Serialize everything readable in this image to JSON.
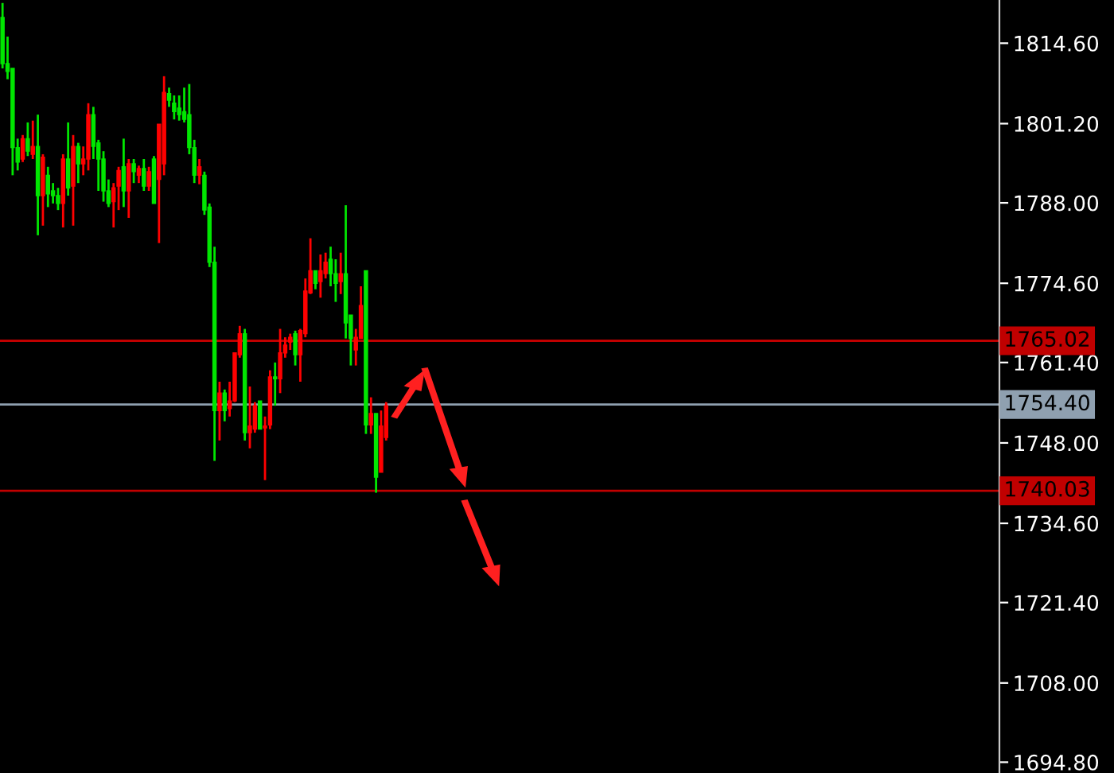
{
  "chart_data": {
    "type": "candlestick",
    "categories": [
      null,
      null,
      null,
      null,
      null,
      null,
      null,
      null,
      null,
      null,
      null,
      null,
      null,
      null,
      null,
      null,
      null,
      null,
      null,
      null,
      null,
      null,
      null,
      null,
      null,
      null,
      null,
      null,
      null,
      null,
      null,
      null,
      null,
      null,
      null,
      null,
      null,
      null,
      null,
      null,
      null,
      null,
      null,
      null,
      null,
      null,
      null,
      null,
      null,
      null,
      null,
      null,
      null,
      null,
      null,
      null,
      null,
      null,
      null,
      null,
      null,
      null,
      null,
      null,
      null,
      null,
      null,
      null,
      null,
      null,
      null,
      null,
      null,
      null,
      null,
      null,
      null,
      null,
      null,
      null,
      null,
      null,
      null,
      null,
      null,
      null,
      null,
      null,
      null,
      null,
      null,
      null,
      null,
      null,
      null,
      null,
      null,
      null,
      null,
      null,
      null,
      null,
      null,
      null,
      null,
      null,
      null,
      null,
      null,
      null,
      null,
      null,
      null,
      null,
      null,
      null,
      null,
      null,
      null,
      null,
      null,
      null,
      null,
      null,
      null,
      null,
      null,
      null,
      null,
      null,
      null,
      null,
      null,
      null,
      null,
      null,
      null,
      null,
      null,
      null,
      null,
      null,
      null,
      null,
      null,
      null,
      null,
      null,
      null,
      null,
      null,
      null,
      null,
      null,
      null,
      null,
      null,
      null,
      null,
      null,
      null,
      null,
      null,
      null,
      null,
      null,
      null,
      null,
      null,
      null,
      null,
      null,
      null,
      null,
      null,
      null,
      null,
      null,
      null,
      null,
      null,
      null,
      null,
      null,
      null,
      null,
      null,
      null,
      null,
      null,
      null,
      null,
      null,
      null,
      null,
      null,
      null,
      null
    ],
    "ohlc": [
      [
        1818.9,
        1821.3,
        1810.4,
        1811.2
      ],
      [
        1811.2,
        1815.7,
        1808.6,
        1809.9
      ],
      [
        1810.4,
        1810.4,
        1792.6,
        1797.2
      ],
      [
        1797.2,
        1798.7,
        1793.4,
        1794.8
      ],
      [
        1795.3,
        1799.3,
        1794.8,
        1798.7
      ],
      [
        1798.7,
        1801.4,
        1795.8,
        1796.6
      ],
      [
        1796.1,
        1801.7,
        1795.3,
        1797.4
      ],
      [
        1797.4,
        1802.7,
        1782.6,
        1789.2
      ],
      [
        1789.2,
        1796.1,
        1784.2,
        1795.6
      ],
      [
        1792.6,
        1794.0,
        1787.3,
        1789.5
      ],
      [
        1790.0,
        1791.3,
        1787.9,
        1789.2
      ],
      [
        1789.2,
        1790.5,
        1786.8,
        1787.9
      ],
      [
        1787.9,
        1796.1,
        1783.9,
        1795.3
      ],
      [
        1795.3,
        1801.4,
        1789.2,
        1790.5
      ],
      [
        1790.8,
        1799.3,
        1784.2,
        1797.4
      ],
      [
        1797.4,
        1798.0,
        1791.3,
        1794.5
      ],
      [
        1794.5,
        1797.4,
        1792.6,
        1795.3
      ],
      [
        1795.3,
        1804.6,
        1793.4,
        1802.7
      ],
      [
        1802.7,
        1804.0,
        1795.3,
        1797.4
      ],
      [
        1798.0,
        1798.5,
        1790.0,
        1795.3
      ],
      [
        1795.3,
        1796.6,
        1788.2,
        1790.0
      ],
      [
        1790.0,
        1791.9,
        1787.3,
        1787.9
      ],
      [
        1788.2,
        1791.3,
        1783.9,
        1790.5
      ],
      [
        1790.8,
        1794.0,
        1786.8,
        1793.4
      ],
      [
        1794.0,
        1798.7,
        1787.3,
        1790.0
      ],
      [
        1790.0,
        1795.3,
        1785.5,
        1794.5
      ],
      [
        1794.5,
        1795.3,
        1791.3,
        1793.2
      ],
      [
        1792.6,
        1794.2,
        1791.3,
        1793.7
      ],
      [
        1793.7,
        1795.3,
        1790.0,
        1790.8
      ],
      [
        1790.8,
        1794.0,
        1790.0,
        1793.2
      ],
      [
        1795.3,
        1795.8,
        1787.9,
        1787.9
      ],
      [
        1791.9,
        1801.1,
        1781.3,
        1801.1
      ],
      [
        1794.5,
        1809.1,
        1792.6,
        1806.4
      ],
      [
        1806.2,
        1807.2,
        1804.0,
        1805.1
      ],
      [
        1804.6,
        1805.9,
        1801.9,
        1803.2
      ],
      [
        1803.8,
        1805.9,
        1801.7,
        1802.7
      ],
      [
        1803.2,
        1807.2,
        1801.4,
        1801.9
      ],
      [
        1802.7,
        1807.8,
        1796.1,
        1797.2
      ],
      [
        1797.2,
        1798.5,
        1791.3,
        1792.6
      ],
      [
        1792.6,
        1795.3,
        1791.1,
        1794.0
      ],
      [
        1792.6,
        1793.2,
        1786.0,
        1786.8
      ],
      [
        1787.3,
        1787.9,
        1777.3,
        1778.1
      ],
      [
        1778.1,
        1780.7,
        1745.0,
        1753.4
      ],
      [
        1753.4,
        1758.2,
        1748.4,
        1756.3
      ],
      [
        1756.3,
        1756.9,
        1751.6,
        1753.4
      ],
      [
        1753.7,
        1758.2,
        1752.4,
        1755.0
      ],
      [
        1755.0,
        1763.0,
        1754.8,
        1763.0
      ],
      [
        1762.7,
        1767.5,
        1762.2,
        1766.2
      ],
      [
        1766.2,
        1767.0,
        1748.4,
        1749.7
      ],
      [
        1749.7,
        1757.4,
        1747.1,
        1750.8
      ],
      [
        1750.3,
        1754.8,
        1749.7,
        1754.2
      ],
      [
        1755.0,
        1755.0,
        1750.3,
        1750.3
      ],
      [
        1750.5,
        1752.4,
        1741.8,
        1750.8
      ],
      [
        1751.0,
        1760.1,
        1750.3,
        1759.0
      ],
      [
        1759.0,
        1761.4,
        1754.2,
        1758.7
      ],
      [
        1758.7,
        1767.0,
        1756.3,
        1763.0
      ],
      [
        1763.0,
        1765.6,
        1762.2,
        1764.3
      ],
      [
        1764.8,
        1766.2,
        1763.5,
        1765.6
      ],
      [
        1766.2,
        1766.7,
        1760.9,
        1762.7
      ],
      [
        1762.7,
        1767.0,
        1758.2,
        1766.7
      ],
      [
        1766.2,
        1775.4,
        1765.6,
        1773.3
      ],
      [
        1773.0,
        1782.1,
        1772.8,
        1776.7
      ],
      [
        1776.7,
        1776.7,
        1773.6,
        1774.6
      ],
      [
        1774.9,
        1779.4,
        1772.2,
        1776.7
      ],
      [
        1776.2,
        1779.7,
        1775.4,
        1778.1
      ],
      [
        1778.6,
        1780.7,
        1774.1,
        1776.2
      ],
      [
        1776.2,
        1778.6,
        1771.5,
        1774.6
      ],
      [
        1774.9,
        1779.7,
        1772.8,
        1776.2
      ],
      [
        1776.2,
        1787.6,
        1765.4,
        1768.0
      ],
      [
        1769.3,
        1769.3,
        1760.9,
        1765.4
      ],
      [
        1763.5,
        1767.0,
        1760.9,
        1765.6
      ],
      [
        1765.4,
        1774.1,
        1765.4,
        1770.9
      ],
      [
        1776.7,
        1776.7,
        1749.5,
        1751.0
      ],
      [
        1751.0,
        1755.6,
        1749.5,
        1752.9
      ],
      [
        1752.9,
        1752.9,
        1739.7,
        1742.3
      ],
      [
        1743.1,
        1753.4,
        1743.1,
        1750.8
      ],
      [
        1748.9,
        1754.8,
        1748.4,
        1754.2
      ],
      null,
      null,
      null,
      null,
      null,
      null,
      null,
      null,
      null,
      null,
      null,
      null,
      null,
      null,
      null,
      null,
      null,
      null,
      null,
      null,
      null,
      null,
      null,
      null,
      null,
      null,
      null,
      null,
      null,
      null,
      null,
      null,
      null,
      null,
      null,
      null,
      null,
      null,
      null,
      null,
      null,
      null,
      null,
      null,
      null,
      null,
      null,
      null,
      null,
      null,
      null,
      null,
      null,
      null,
      null,
      null,
      null,
      null,
      null,
      null,
      null,
      null,
      null,
      null,
      null,
      null,
      null,
      null,
      null,
      null,
      null,
      null,
      null,
      null,
      null,
      null,
      null,
      null,
      null,
      null,
      null,
      null,
      null,
      null,
      null,
      null,
      null,
      null,
      null,
      null,
      null,
      null,
      null,
      null,
      null,
      null,
      null,
      null,
      null,
      null,
      null,
      null,
      null,
      null,
      null,
      null,
      null,
      null,
      null,
      null,
      null,
      null,
      null,
      null,
      null,
      null,
      null,
      null,
      null,
      null,
      null
    ],
    "colors": [
      "#00e600",
      "#00e600",
      "#00e600",
      "#00e600",
      "#ff0000",
      "#00e600",
      "#ff0000",
      "#00e600",
      "#ff0000",
      "#00e600",
      "#00e600",
      "#00e600",
      "#ff0000",
      "#00e600",
      "#ff0000",
      "#00e600",
      "#ff0000",
      "#ff0000",
      "#00e600",
      "#00e600",
      "#00e600",
      "#00e600",
      "#ff0000",
      "#ff0000",
      "#00e600",
      "#ff0000",
      "#00e600",
      "#ff0000",
      "#00e600",
      "#ff0000",
      "#00e600",
      "#ff0000",
      "#ff0000",
      "#00e600",
      "#00e600",
      "#00e600",
      "#00e600",
      "#00e600",
      "#00e600",
      "#ff0000",
      "#00e600",
      "#00e600",
      "#00e600",
      "#ff0000",
      "#00e600",
      "#ff0000",
      "#ff0000",
      "#ff0000",
      "#00e600",
      "#ff0000",
      "#ff0000",
      "#00e600",
      "#ff0000",
      "#ff0000",
      "#00e600",
      "#ff0000",
      "#ff0000",
      "#ff0000",
      "#00e600",
      "#ff0000",
      "#ff0000",
      "#ff0000",
      "#00e600",
      "#ff0000",
      "#ff0000",
      "#00e600",
      "#00e600",
      "#ff0000",
      "#00e600",
      "#00e600",
      "#ff0000",
      "#ff0000",
      "#00e600",
      "#ff0000",
      "#00e600",
      "#ff0000",
      "#ff0000",
      null,
      null,
      null,
      null,
      null,
      null,
      null,
      null,
      null,
      null,
      null,
      null,
      null,
      null,
      null,
      null,
      null,
      null,
      null,
      null,
      null,
      null,
      null,
      null,
      null,
      null,
      null,
      null,
      null,
      null,
      null,
      null,
      null,
      null,
      null,
      null,
      null,
      null,
      null,
      null,
      null,
      null,
      null,
      null,
      null,
      null,
      null,
      null,
      null,
      null,
      null,
      null,
      null,
      null,
      null,
      null,
      null,
      null,
      null,
      null,
      null,
      null,
      null,
      null,
      null,
      null,
      null,
      null,
      null,
      null,
      null,
      null,
      null,
      null,
      null,
      null,
      null,
      null,
      null,
      null,
      null,
      null,
      null,
      null,
      null,
      null,
      null,
      null,
      null,
      null,
      null,
      null,
      null,
      null,
      null,
      null,
      null,
      null,
      null,
      null,
      null,
      null,
      null,
      null,
      null,
      null,
      null,
      null,
      null,
      null,
      null,
      null,
      null,
      null,
      null,
      null,
      null,
      null,
      null,
      null,
      null
    ],
    "ylim": [
      1693.0,
      1821.8
    ],
    "yticks": [
      {
        "value": 1814.6,
        "label": "1814.60"
      },
      {
        "value": 1801.2,
        "label": "1801.20"
      },
      {
        "value": 1788.0,
        "label": "1788.00"
      },
      {
        "value": 1774.6,
        "label": "1774.60"
      },
      {
        "value": 1761.4,
        "label": "1761.40"
      },
      {
        "value": 1748.0,
        "label": "1748.00"
      },
      {
        "value": 1734.6,
        "label": "1734.60"
      },
      {
        "value": 1721.4,
        "label": "1721.40"
      },
      {
        "value": 1708.0,
        "label": "1708.00"
      },
      {
        "value": 1694.8,
        "label": "1694.80"
      }
    ],
    "ref_lines": [
      {
        "axis": "y",
        "value": 1765.02,
        "label": "1765.02",
        "color": "#c00000"
      },
      {
        "axis": "y",
        "value": 1754.4,
        "label": "1754.40",
        "color": "#8fa0b0"
      },
      {
        "axis": "y",
        "value": 1740.03,
        "label": "1740.03",
        "color": "#c00000"
      }
    ],
    "tick_labels": "y"
  }
}
